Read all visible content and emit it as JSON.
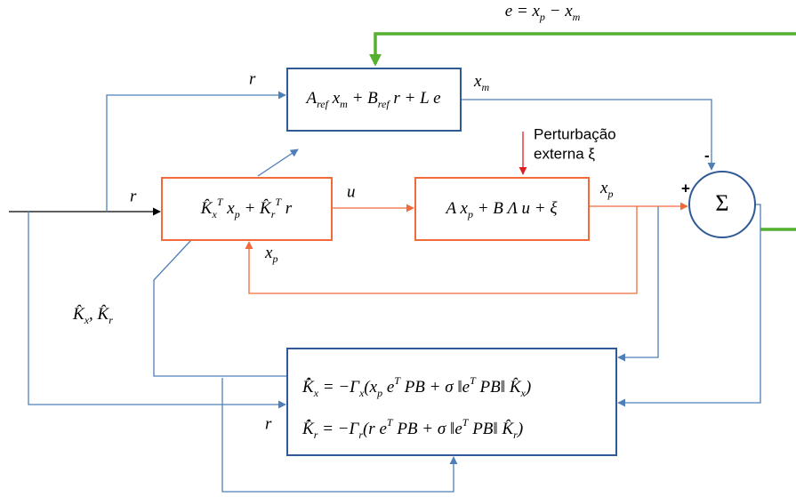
{
  "error_label": [
    "e = x",
    {
      "sub": "p"
    },
    " − x",
    {
      "sub": "m"
    }
  ],
  "reference_model": [
    "A",
    {
      "sub": "ref"
    },
    " x",
    {
      "sub": "m"
    },
    " + B",
    {
      "sub": "ref"
    },
    " r + L e"
  ],
  "controller": [
    "K̂",
    {
      "sub": "x"
    },
    {
      "sup": "T"
    },
    " x",
    {
      "sub": "p"
    },
    " + K̂",
    {
      "sub": "r"
    },
    {
      "sup": "T"
    },
    " r"
  ],
  "plant": [
    "A x",
    {
      "sub": "p"
    },
    " + B Λ u + ξ"
  ],
  "adaptation_law_x": [
    "K̂̇",
    {
      "sub": "x"
    },
    " = −Γ",
    {
      "sub": "x"
    },
    "(x",
    {
      "sub": "p"
    },
    " e",
    {
      "sup": "T"
    },
    " PB + σ ‖e",
    {
      "sup": "T"
    },
    " PB‖ K̂",
    {
      "sub": "x"
    },
    ")"
  ],
  "adaptation_law_r": [
    "K̂̇",
    {
      "sub": "r"
    },
    " = −Γ",
    {
      "sub": "r"
    },
    "(r e",
    {
      "sup": "T"
    },
    " PB + σ ‖e",
    {
      "sup": "T"
    },
    " PB‖ K̂",
    {
      "sub": "r"
    },
    ")"
  ],
  "summation": "Σ",
  "sum_plus": "+",
  "sum_minus": "-",
  "disturbance": [
    "Perturbação",
    "externa ξ"
  ],
  "signal_r_ref": "r",
  "signal_r_ctrl": "r",
  "signal_r_adapt": "r",
  "signal_u": "u",
  "signal_xm": [
    "x",
    {
      "sub": "m"
    }
  ],
  "signal_xp_out": [
    "x",
    {
      "sub": "p"
    }
  ],
  "signal_xp_fb": [
    "x",
    {
      "sub": "p"
    }
  ],
  "gains": [
    "K̂",
    {
      "sub": "x"
    },
    ", K̂",
    {
      "sub": "r"
    }
  ]
}
